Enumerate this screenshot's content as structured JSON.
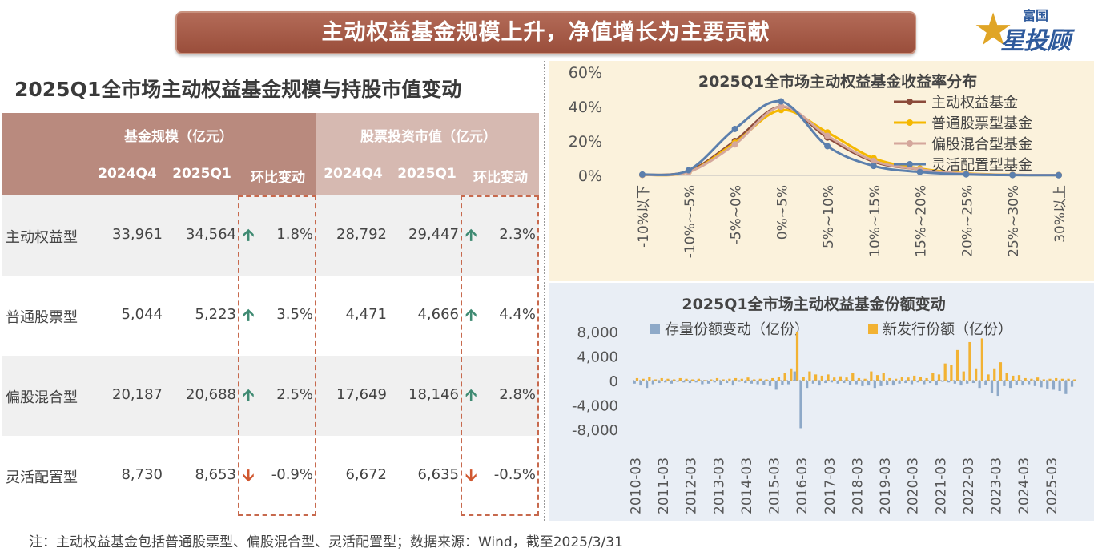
{
  "banner": {
    "title": "主动权益基金规模上升，净值增长为主要贡献"
  },
  "logo": {
    "small": "富国",
    "big": "星投顾"
  },
  "table": {
    "title": "2025Q1全市场主动权益基金规模与持股市值变动",
    "group1": "基金规模（亿元）",
    "group2": "股票投资市值（亿元）",
    "cols": [
      "2024Q4",
      "2025Q1",
      "环比变动",
      "2024Q4",
      "2025Q1",
      "环比变动"
    ],
    "rows": [
      {
        "label": "主动权益型",
        "s_q4": "33,961",
        "s_q1": "34,564",
        "s_dir": "up",
        "s_chg": "1.8%",
        "m_q4": "28,792",
        "m_q1": "29,447",
        "m_dir": "up",
        "m_chg": "2.3%"
      },
      {
        "label": "普通股票型",
        "s_q4": "5,044",
        "s_q1": "5,223",
        "s_dir": "up",
        "s_chg": "3.5%",
        "m_q4": "4,471",
        "m_q1": "4,666",
        "m_dir": "up",
        "m_chg": "4.4%"
      },
      {
        "label": "偏股混合型",
        "s_q4": "20,187",
        "s_q1": "20,688",
        "s_dir": "up",
        "s_chg": "2.5%",
        "m_q4": "17,649",
        "m_q1": "18,146",
        "m_dir": "up",
        "m_chg": "2.8%"
      },
      {
        "label": "灵活配置型",
        "s_q4": "8,730",
        "s_q1": "8,653",
        "s_dir": "down",
        "s_chg": "-0.9%",
        "m_q4": "6,672",
        "m_q1": "6,635",
        "m_dir": "down",
        "m_chg": "-0.5%"
      }
    ],
    "arrow_up": "🡩",
    "arrow_down": "🡫"
  },
  "footnote": "注：主动权益基金包括普通股票型、偏股混合型、灵活配置型；数据来源：Wind，截至2025/3/31",
  "colors": {
    "banner": "#a65a46",
    "up": "#3f8a72",
    "down": "#d0572f",
    "panel1_bg": "#fbf2dc",
    "panel2_bg": "#e9eef5"
  },
  "chart_data": [
    {
      "type": "line",
      "title": "2025Q1全市场主动权益基金收益率分布",
      "categories": [
        "-10%以下",
        "-10%~-5%",
        "-5%~0%",
        "0%~5%",
        "5%~10%",
        "10%~15%",
        "15%~20%",
        "20%~25%",
        "25%~30%",
        "30%以上"
      ],
      "ylim": [
        0,
        60
      ],
      "yticks": [
        "0%",
        "20%",
        "40%",
        "60%"
      ],
      "legend_position": "right",
      "series": [
        {
          "name": "主动权益基金",
          "color": "#8b4a3a",
          "values": [
            0.3,
            2.5,
            20,
            40,
            22,
            8,
            3.5,
            1,
            0.3,
            0.2
          ]
        },
        {
          "name": "普通股票型基金",
          "color": "#f5b800",
          "values": [
            0.3,
            2,
            19,
            38,
            25,
            10,
            4,
            1.2,
            0.3,
            0.2
          ]
        },
        {
          "name": "偏股混合型基金",
          "color": "#d4a79c",
          "values": [
            0.3,
            2,
            18,
            40,
            23,
            8.5,
            3.5,
            1,
            0.3,
            0.2
          ]
        },
        {
          "name": "灵活配置型基金",
          "color": "#5b7fad",
          "values": [
            0.5,
            3,
            27,
            43,
            17,
            5.5,
            2,
            0.6,
            0.2,
            0.1
          ]
        }
      ]
    },
    {
      "type": "bar",
      "title": "2025Q1全市场主动权益基金份额变动",
      "ylim": [
        -8000,
        8000
      ],
      "yticks": [
        "-8,000",
        "-4,000",
        "0",
        "4,000",
        "8,000"
      ],
      "xticks": [
        "2010-03",
        "2011-03",
        "2012-03",
        "2013-03",
        "2014-03",
        "2015-03",
        "2016-03",
        "2017-03",
        "2018-03",
        "2019-03",
        "2020-03",
        "2021-03",
        "2022-03",
        "2023-03",
        "2024-03",
        "2025-03"
      ],
      "legend_position": "top",
      "series": [
        {
          "name": "存量份额变动（亿份）",
          "color": "#8ea9c8",
          "values": [
            -500,
            -800,
            -1200,
            -600,
            -400,
            -300,
            -500,
            -200,
            -300,
            -400,
            -300,
            -600,
            -500,
            -300,
            -700,
            -400,
            -800,
            -200,
            -400,
            -500,
            -600,
            -700,
            -900,
            -1500,
            -700,
            -600,
            1500,
            -7800,
            -1200,
            -500,
            -800,
            -400,
            -300,
            -500,
            -400,
            -700,
            -600,
            -900,
            -800,
            -1200,
            -900,
            -700,
            -800,
            -500,
            -400,
            -600,
            -300,
            -600,
            -400,
            -800,
            -200,
            -300,
            -500,
            -800,
            -500,
            -400,
            -1200,
            -700,
            -2000,
            -2500,
            -900,
            -1200,
            -700,
            -800,
            -600,
            -900,
            -1100,
            -1300,
            -1500,
            -1700,
            -2200,
            -1000
          ]
        },
        {
          "name": "新发行份额（亿份）",
          "color": "#f2b233",
          "values": [
            400,
            300,
            600,
            200,
            400,
            300,
            200,
            400,
            300,
            200,
            300,
            100,
            200,
            400,
            200,
            300,
            400,
            300,
            500,
            200,
            300,
            200,
            400,
            600,
            1200,
            2000,
            8000,
            600,
            1500,
            1000,
            800,
            1000,
            500,
            700,
            500,
            1300,
            400,
            300,
            1500,
            900,
            1200,
            400,
            300,
            600,
            500,
            800,
            600,
            400,
            1200,
            1000,
            2800,
            2600,
            5000,
            1500,
            6300,
            2000,
            6900,
            1000,
            2000,
            3000,
            1200,
            800,
            900,
            400,
            300,
            500,
            200,
            300,
            400,
            300,
            300,
            200
          ]
        }
      ]
    }
  ]
}
